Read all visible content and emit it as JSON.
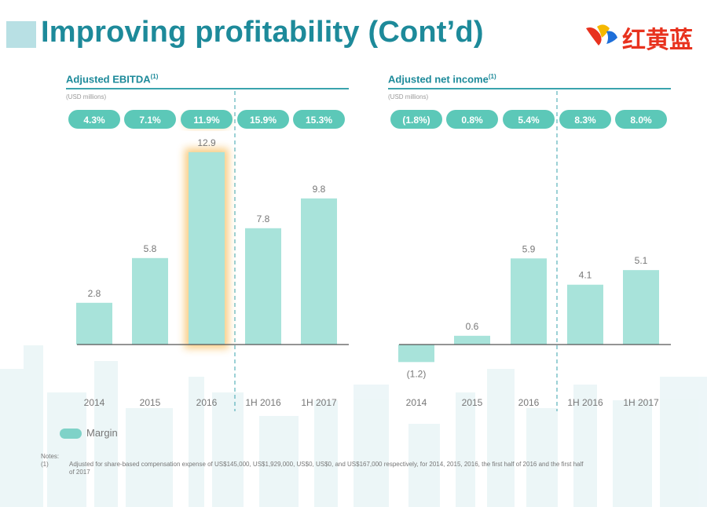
{
  "header": {
    "title": "Improving profitability (Cont’d)",
    "logo_text": "红黄蓝"
  },
  "colors": {
    "accent": "#1d8a9a",
    "bar": "#a8e3da",
    "pill": "#5cc8b8",
    "highlight_glow": "#f5a623",
    "logo_red": "#e8321e"
  },
  "chart_data": [
    {
      "type": "bar",
      "title": "Adjusted EBITDA",
      "title_note": "(1)",
      "unit_label": "(USD millions)",
      "categories": [
        "2014",
        "2015",
        "2016",
        "1H 2016",
        "1H 2017"
      ],
      "values": [
        2.8,
        5.8,
        12.9,
        7.8,
        9.8
      ],
      "value_labels": [
        "2.8",
        "5.8",
        "12.9",
        "7.8",
        "9.8"
      ],
      "margins": [
        "4.3%",
        "7.1%",
        "11.9%",
        "15.9%",
        "15.3%"
      ],
      "highlighted_category": "2016",
      "divider_after_index": 2
    },
    {
      "type": "bar",
      "title": "Adjusted net income",
      "title_note": "(1)",
      "unit_label": "(USD millions)",
      "categories": [
        "2014",
        "2015",
        "2016",
        "1H 2016",
        "1H 2017"
      ],
      "values": [
        -1.2,
        0.6,
        5.9,
        4.1,
        5.1
      ],
      "value_labels": [
        "(1.2)",
        "0.6",
        "5.9",
        "4.1",
        "5.1"
      ],
      "margins": [
        "(1.8%)",
        "0.8%",
        "5.4%",
        "8.3%",
        "8.0%"
      ],
      "divider_after_index": 2
    }
  ],
  "legend": {
    "label": "Margin"
  },
  "notes": {
    "label": "Notes:",
    "items": [
      {
        "num": "(1)",
        "text": "Adjusted for share-based compensation expense of US$145,000, US$1,929,000, US$0, US$0, and US$167,000 respectively, for 2014, 2015, 2016, the first half of 2016 and the first half of 2017"
      }
    ]
  }
}
